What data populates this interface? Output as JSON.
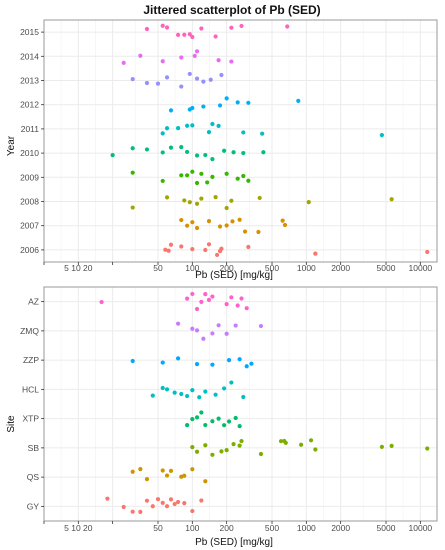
{
  "chart_data": [
    {
      "type": "scatter",
      "title": "Jittered scatterplot of Pb (SED)",
      "xlabel": "Pb (SED) [mg/kg]",
      "ylabel": "Year",
      "x_scale": "log",
      "xlim": [
        5,
        14000
      ],
      "x_ticks": [
        "5",
        "10",
        "20",
        "50",
        "100",
        "200",
        "500",
        "1000",
        "2000",
        "5000",
        "10000"
      ],
      "x_tick_values": [
        5,
        10,
        20,
        50,
        100,
        200,
        500,
        1000,
        2000,
        5000,
        10000
      ],
      "x_ticks_shown": [
        "5 10 20",
        "50",
        "100",
        "200",
        "500",
        "1000",
        "2000",
        "5000",
        "10000"
      ],
      "categories": [
        "2006",
        "2007",
        "2008",
        "2009",
        "2010",
        "2011",
        "2012",
        "2013",
        "2014",
        "2015"
      ],
      "grid": true,
      "legend": "none",
      "series": [
        {
          "category": "2006",
          "color": "#F8766D",
          "x": [
            58,
            62,
            65,
            80,
            100,
            130,
            140,
            165,
            175,
            180,
            310,
            1200,
            11500
          ]
        },
        {
          "category": "2007",
          "color": "#D89000",
          "x": [
            80,
            90,
            100,
            110,
            140,
            175,
            200,
            225,
            260,
            290,
            380,
            620,
            650
          ]
        },
        {
          "category": "2008",
          "color": "#A3A500",
          "x": [
            30,
            60,
            85,
            95,
            110,
            120,
            160,
            200,
            220,
            390,
            1050,
            5600
          ]
        },
        {
          "category": "2009",
          "color": "#39B600",
          "x": [
            30,
            55,
            80,
            90,
            100,
            110,
            120,
            135,
            150,
            200,
            250,
            280,
            310
          ]
        },
        {
          "category": "2010",
          "color": "#00BF7D",
          "x": [
            20,
            30,
            40,
            55,
            65,
            80,
            90,
            110,
            130,
            150,
            190,
            230,
            280,
            420
          ]
        },
        {
          "category": "2011",
          "color": "#00BFC4",
          "x": [
            55,
            60,
            75,
            90,
            100,
            140,
            150,
            170,
            280,
            410,
            4600
          ]
        },
        {
          "category": "2012",
          "color": "#00B0F6",
          "x": [
            65,
            95,
            100,
            125,
            175,
            200,
            250,
            310,
            850
          ]
        },
        {
          "category": "2013",
          "color": "#9590FF",
          "x": [
            30,
            40,
            50,
            60,
            80,
            95,
            110,
            125,
            145,
            180
          ]
        },
        {
          "category": "2014",
          "color": "#E76BF3",
          "x": [
            25,
            35,
            55,
            80,
            105,
            110,
            170,
            220
          ]
        },
        {
          "category": "2015",
          "color": "#FF62BC",
          "x": [
            40,
            55,
            60,
            75,
            85,
            95,
            100,
            120,
            160,
            220,
            270,
            680
          ]
        }
      ]
    },
    {
      "type": "scatter",
      "title": "",
      "xlabel": "Pb (SED) [mg/kg]",
      "ylabel": "Site",
      "x_scale": "log",
      "xlim": [
        5,
        14000
      ],
      "x_ticks": [
        "5",
        "10",
        "20",
        "50",
        "100",
        "200",
        "500",
        "1000",
        "2000",
        "5000",
        "10000"
      ],
      "x_tick_values": [
        5,
        10,
        20,
        50,
        100,
        200,
        500,
        1000,
        2000,
        5000,
        10000
      ],
      "x_ticks_shown": [
        "5 10 20",
        "50",
        "100",
        "200",
        "500",
        "1000",
        "2000",
        "5000",
        "10000"
      ],
      "categories": [
        "GY",
        "QS",
        "SB",
        "XTP",
        "HCL",
        "ZZP",
        "ZMQ",
        "AZ"
      ],
      "grid": true,
      "legend": "none",
      "series": [
        {
          "category": "GY",
          "color": "#F8766D",
          "x": [
            18,
            25,
            30,
            35,
            40,
            45,
            50,
            55,
            60,
            65,
            70,
            75,
            85,
            100,
            120
          ]
        },
        {
          "category": "QS",
          "color": "#CD9600",
          "x": [
            30,
            35,
            40,
            55,
            60,
            65,
            80,
            85,
            100,
            130
          ]
        },
        {
          "category": "SB",
          "color": "#7CAE00",
          "x": [
            100,
            110,
            130,
            150,
            180,
            200,
            230,
            260,
            270,
            400,
            600,
            640,
            660,
            900,
            1100,
            1200,
            4600,
            5600,
            11500
          ]
        },
        {
          "category": "XTP",
          "color": "#00BE67",
          "x": [
            90,
            100,
            110,
            120,
            130,
            150,
            170,
            190,
            210,
            240,
            260
          ]
        },
        {
          "category": "HCL",
          "color": "#00BFC4",
          "x": [
            45,
            55,
            60,
            70,
            80,
            90,
            100,
            115,
            130,
            160,
            190,
            220,
            280
          ]
        },
        {
          "category": "ZZP",
          "color": "#00A9FF",
          "x": [
            30,
            55,
            75,
            110,
            150,
            210,
            260,
            300,
            330
          ]
        },
        {
          "category": "ZMQ",
          "color": "#C77CFF",
          "x": [
            75,
            100,
            110,
            125,
            150,
            170,
            200,
            240,
            400
          ]
        },
        {
          "category": "AZ",
          "color": "#FF61CC",
          "x": [
            16,
            90,
            100,
            110,
            120,
            130,
            140,
            150,
            200,
            220,
            250,
            270,
            300
          ]
        }
      ]
    }
  ]
}
